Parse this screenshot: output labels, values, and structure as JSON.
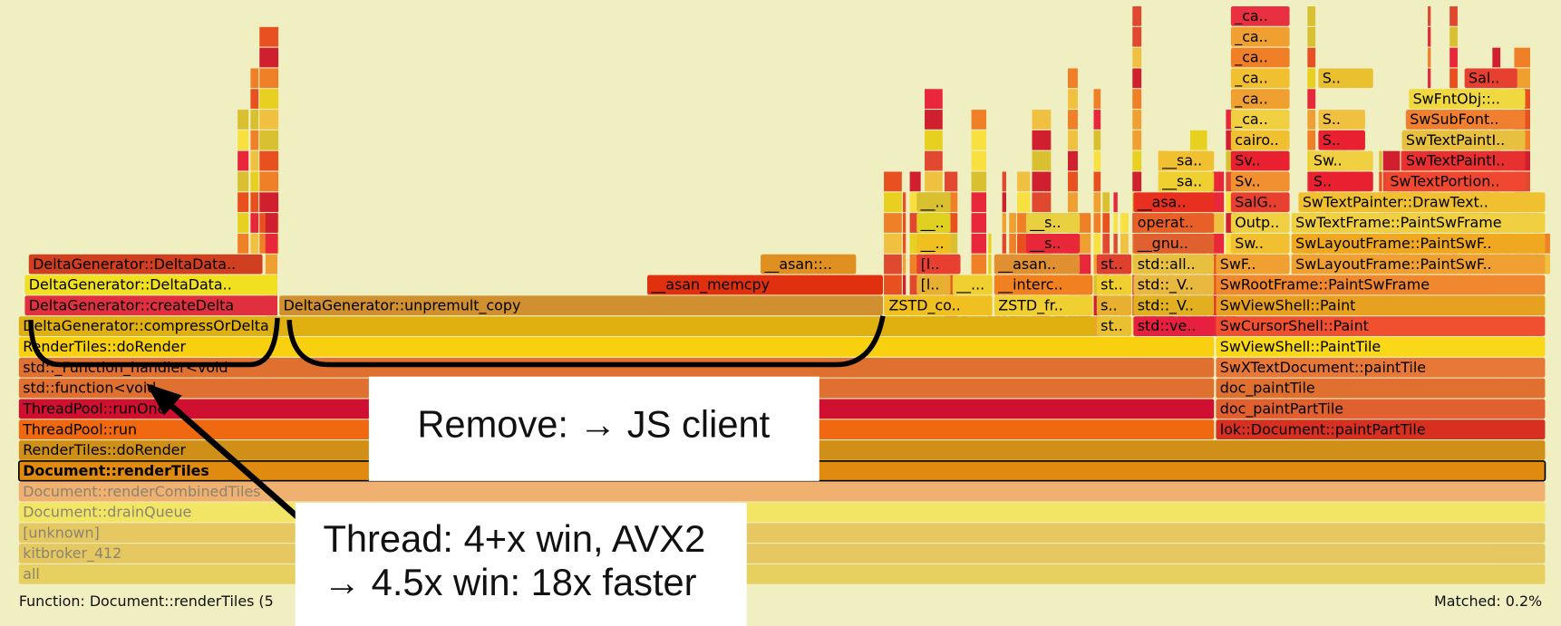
{
  "frames": [
    "all",
    "kitbroker_412",
    "[unknown]",
    "Document::drainQueue",
    "Document::renderCombinedTiles",
    "Document::renderTiles",
    "RenderTiles::doRender",
    "ThreadPool::run",
    "lok::Document::paintPartTile",
    "ThreadPool::runOne",
    "doc_paintPartTile",
    "std::function<void",
    "doc_paintTile",
    "std::_Function_handler<void",
    "SwXTextDocument::paintTile",
    "RenderTiles::doRender",
    "SwViewShell::PaintTile",
    "DeltaGenerator::compressOrDelta",
    "st..",
    "std::ve..",
    "SwCursorShell::Paint",
    "DeltaGenerator::createDelta",
    "DeltaGenerator::unpremult_copy",
    "ZSTD_co..",
    "ZSTD_fr..",
    "s..",
    "std::_V..",
    "SwViewShell::Paint",
    "DeltaGenerator::DeltaData..",
    "__asan_memcpy",
    "[l..",
    "__...",
    "__interc..",
    "st..",
    "std::_V..",
    "SwRootFrame::PaintSwFrame",
    "DeltaGenerator::DeltaData..",
    "__asan::..",
    "[l..",
    "__asan..",
    "st..",
    "std::all..",
    "SwF..",
    "SwLayoutFrame::PaintSwF..",
    "__..",
    "__s..",
    "__gnu..",
    "Sw..",
    "SwLayoutFrame::PaintSwF..",
    "__..",
    "__s..",
    "operat..",
    "Outp..",
    "SwTextFrame::PaintSwFrame",
    "__..",
    "__asa..",
    "SalG..",
    "SwTextPainter::DrawText..",
    "__sa..",
    "Sv..",
    "S..",
    "SwTextPortion..",
    "__sa..",
    "Sv..",
    "Sw..",
    "SwTextPaintI..",
    "cairo..",
    "S..",
    "SwTextPaintI..",
    "_ca..",
    "S..",
    "SwSubFont..",
    "_ca..",
    "SwFntObj::..",
    "_ca..",
    "S..",
    "Sal..",
    "_ca..",
    "_ca..",
    "_ca.."
  ],
  "annotations": {
    "remove": "Remove: → JS client",
    "thread": [
      "Thread: 4+x win, AVX2",
      "→ 4.5x win: 18x faster"
    ]
  },
  "status": {
    "function": "Function: Document::renderTiles (5",
    "matched": "Matched: 0.2%"
  }
}
